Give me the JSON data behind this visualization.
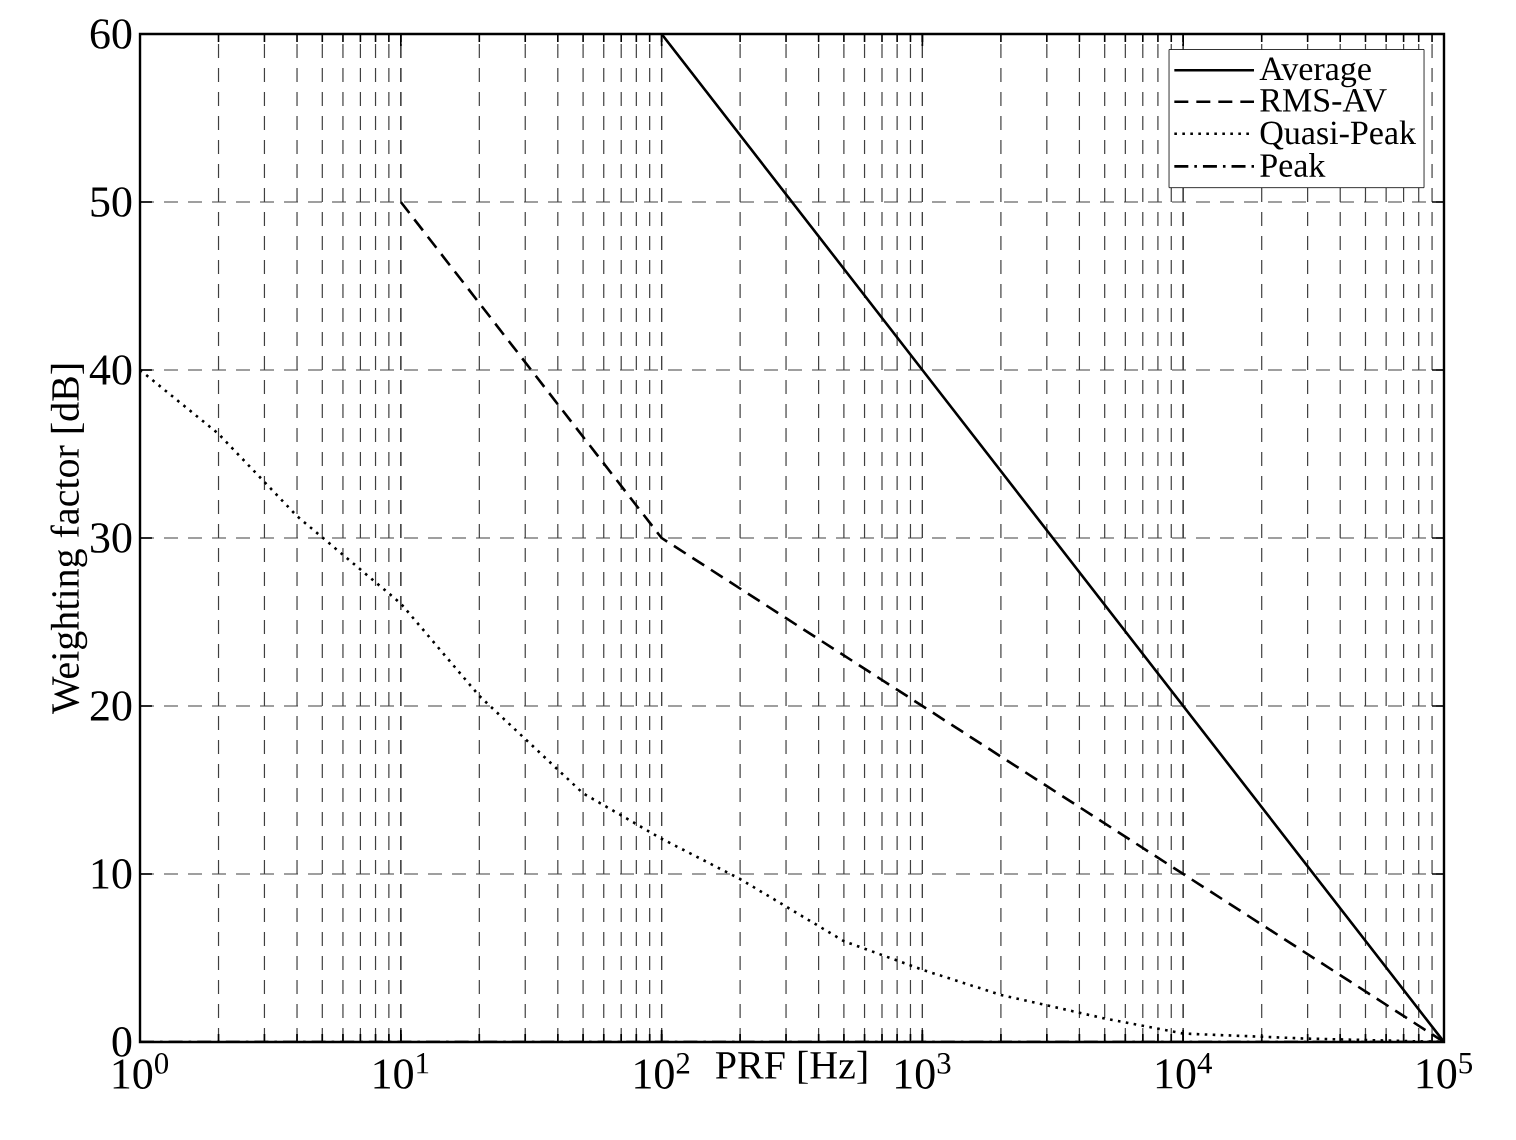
{
  "chart_data": {
    "type": "line",
    "xlabel": "PRF [Hz]",
    "ylabel": "Weighting factor [dB]",
    "log": "x",
    "xlim": [
      1,
      100000
    ],
    "ylim": [
      0,
      60
    ],
    "xticks": [
      {
        "value": 1,
        "label": "10$^{0}$"
      },
      {
        "value": 10,
        "label": "10$^{1}$"
      },
      {
        "value": 100,
        "label": "10$^{2}$"
      },
      {
        "value": 1000,
        "label": "10$^{3}$"
      },
      {
        "value": 10000,
        "label": "10$^{4}$"
      },
      {
        "value": 100000,
        "label": "10$^{5}$"
      }
    ],
    "yticks": [
      0,
      10,
      20,
      30,
      40,
      50,
      60
    ],
    "grid": true,
    "legend": "top right",
    "series": [
      {
        "name": "Average",
        "color": "#000000",
        "line_style": "solid",
        "x": [
          100,
          1000,
          10000,
          100000
        ],
        "values": [
          60,
          40,
          20,
          0
        ]
      },
      {
        "name": "RMS-AV",
        "color": "#000000",
        "line_style": "dashed",
        "x": [
          10,
          100,
          1000,
          10000,
          100000
        ],
        "values": [
          50,
          30,
          20,
          10,
          0
        ]
      },
      {
        "name": "Quasi-Peak",
        "color": "#000000",
        "line_style": "dotted",
        "x": [
          1,
          2,
          4,
          10,
          20,
          50,
          100,
          200,
          500,
          1000,
          2000,
          5000,
          10000,
          30000,
          100000
        ],
        "values": [
          40,
          36.2,
          31.3,
          26.1,
          20.6,
          14.8,
          12.1,
          9.7,
          6,
          4.3,
          2.8,
          1.4,
          0.5,
          0.2,
          0
        ]
      },
      {
        "name": "Peak",
        "color": "#000000",
        "line_style": "dashdot",
        "x": [
          1,
          100000
        ],
        "values": [
          0,
          0
        ]
      }
    ]
  }
}
